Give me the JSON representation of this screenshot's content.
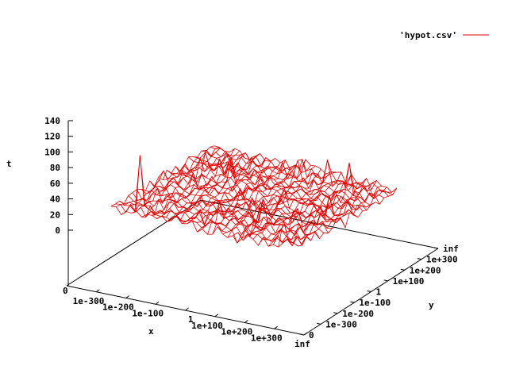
{
  "chart_data": {
    "type": "surface",
    "series": [
      {
        "name": "'hypot.csv'",
        "color": "#ff0000"
      }
    ],
    "xlabel": "x",
    "ylabel": "y",
    "zlabel": "t",
    "x_ticks": [
      "1e-300",
      "1e-200",
      "1e-100",
      "1",
      "1e+100",
      "1e+200",
      "1e+300",
      "inf"
    ],
    "y_ticks": [
      "0",
      "1e-300",
      "1e-200",
      "1e-100",
      "1",
      "1e+100",
      "1e+200",
      "1e+300",
      "inf"
    ],
    "x_origin_label": "0",
    "z_ticks": [
      0,
      20,
      40,
      60,
      80,
      100,
      120,
      140
    ],
    "zlim": [
      0,
      140
    ],
    "grid": false,
    "legend_position": "top-right",
    "surface_baseline_t": 55,
    "surface_spike_max_t": 125
  }
}
